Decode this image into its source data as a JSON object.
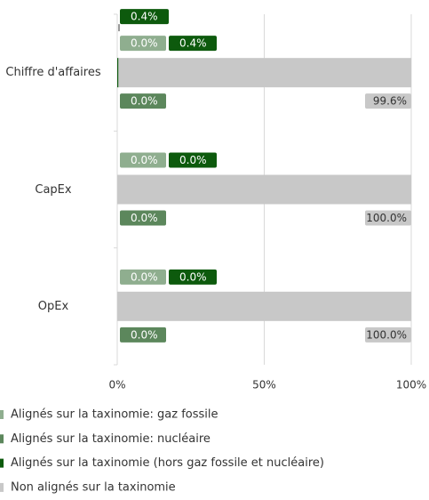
{
  "chart_data": {
    "type": "stacked_barh",
    "categories": [
      "Chiffre d'affaires",
      "CapEx",
      "OpEx"
    ],
    "series": [
      {
        "name": "Alignés sur la taxinomie: gaz fossile",
        "color": "#8fae8f",
        "values": [
          0.0,
          0.0,
          0.0
        ],
        "value_labels": [
          "0.0%",
          "0.0%",
          "0.0%"
        ]
      },
      {
        "name": "Alignés sur la taxinomie: nucléaire",
        "color": "#5c875c",
        "values": [
          0.0,
          0.0,
          0.0
        ],
        "value_labels": [
          "0.0%",
          "0.0%",
          "0.0%"
        ]
      },
      {
        "name": "Alignés sur la taxinomie (hors gaz fossile et nucléaire)",
        "color": "#0d5a0d",
        "values": [
          0.4,
          0.0,
          0.0
        ],
        "value_labels": [
          "0.4%",
          "0.0%",
          "0.0%"
        ]
      },
      {
        "name": "Non alignés sur la taxinomie",
        "color": "#c8c8c8",
        "values": [
          99.6,
          100.0,
          100.0
        ],
        "value_labels": [
          "99.6%",
          "100.0%",
          "100.0%"
        ]
      }
    ],
    "xlim": [
      0,
      100
    ],
    "xticks": [
      {
        "value": 0,
        "label": "0%"
      },
      {
        "value": 50,
        "label": "50%"
      },
      {
        "value": 100,
        "label": "100%"
      }
    ],
    "grid": true
  }
}
